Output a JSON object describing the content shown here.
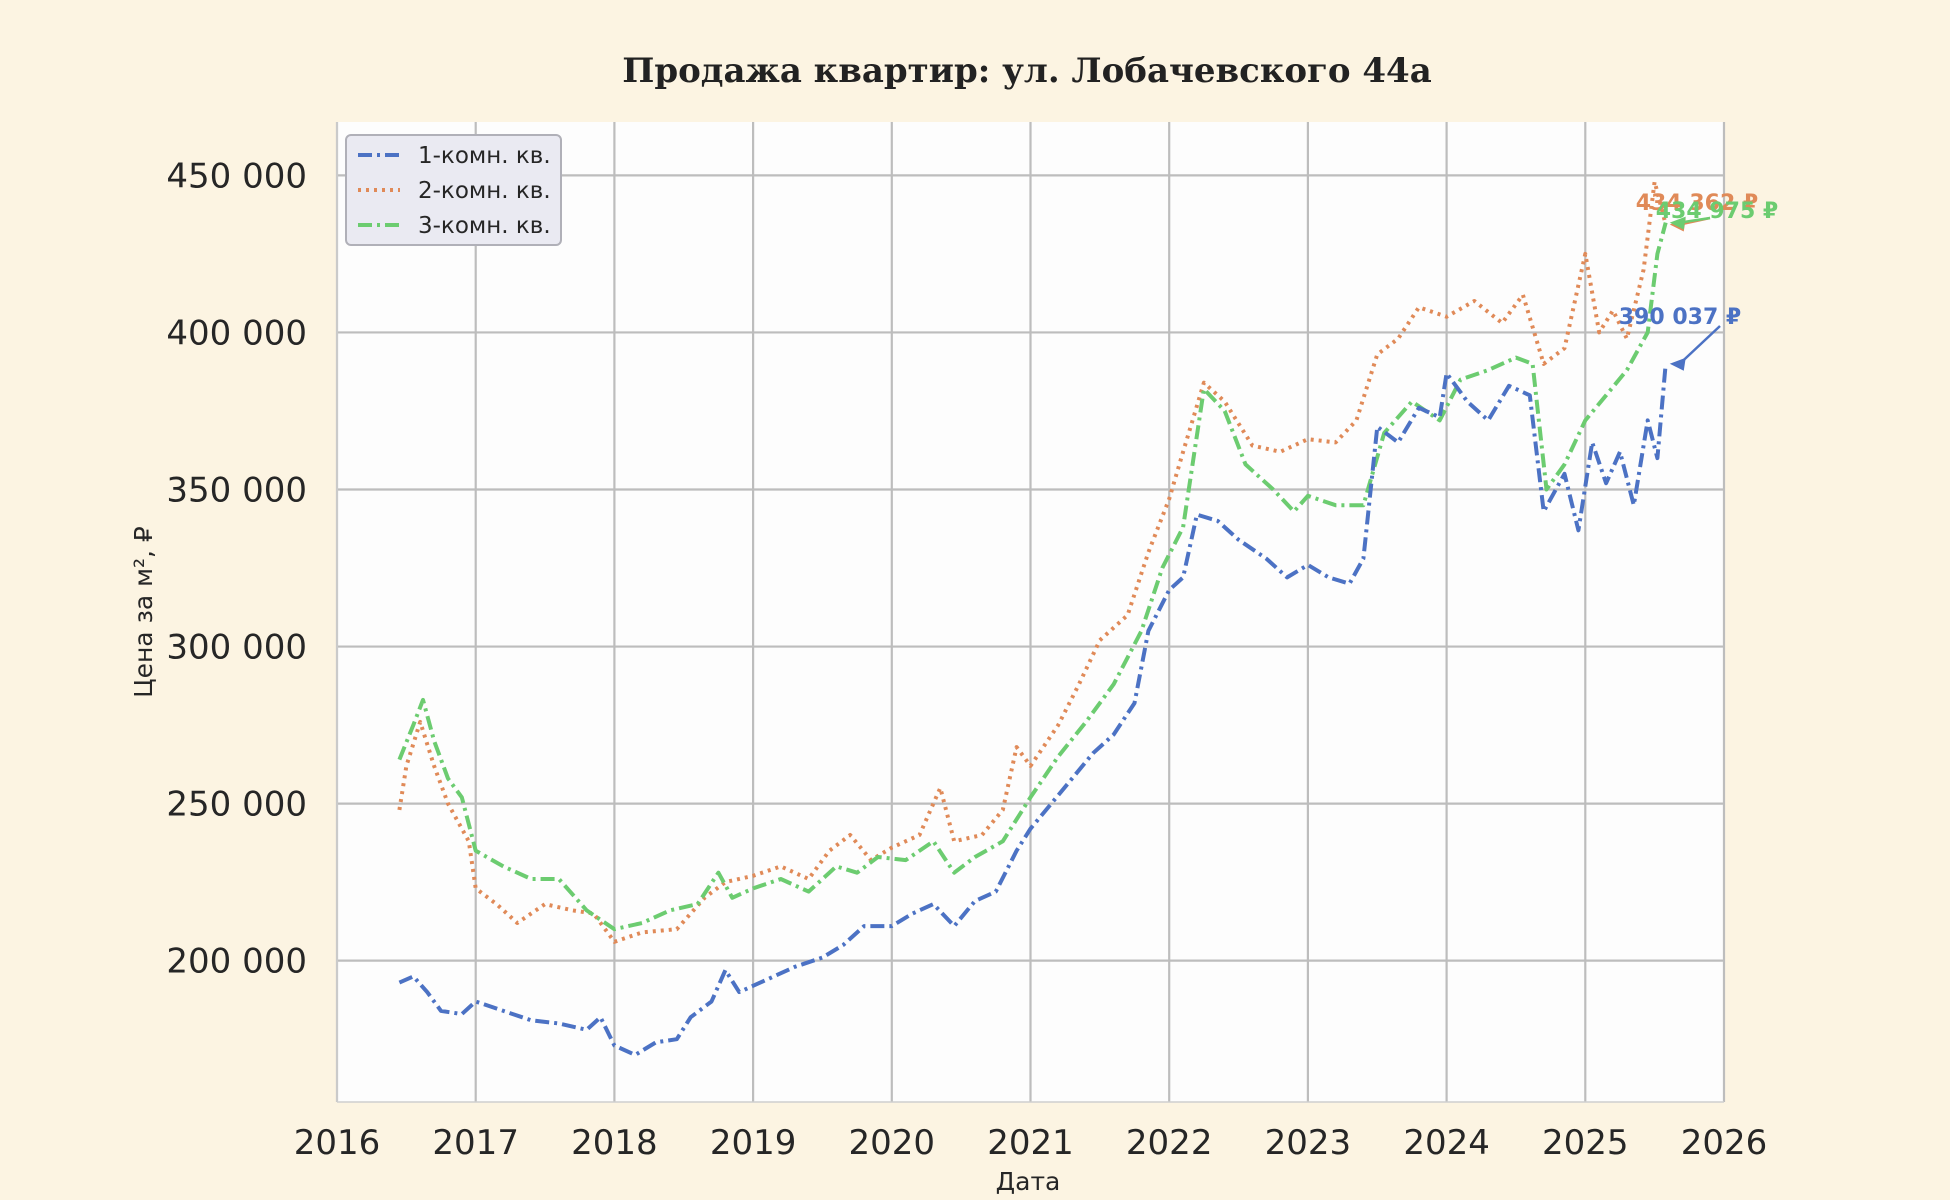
{
  "chart_data": {
    "type": "line",
    "title": "Продажа квартир: ул. Лобачевского 44а",
    "xlabel": "Дата",
    "ylabel": "Цена за м², ₽",
    "xlim": [
      2016,
      2026
    ],
    "ylim": [
      155000,
      467000
    ],
    "x_ticks": [
      "2016",
      "2017",
      "2018",
      "2019",
      "2020",
      "2021",
      "2022",
      "2023",
      "2024",
      "2025",
      "2026"
    ],
    "y_ticks": [
      {
        "value": 200000,
        "label": "200 000"
      },
      {
        "value": 250000,
        "label": "250 000"
      },
      {
        "value": 300000,
        "label": "300 000"
      },
      {
        "value": 350000,
        "label": "350 000"
      },
      {
        "value": 400000,
        "label": "400 000"
      },
      {
        "value": 450000,
        "label": "450 000"
      }
    ],
    "grid": true,
    "legend_position": "top-left",
    "series": [
      {
        "name": "1-комн. кв.",
        "color": "#4c72c4",
        "dash": "dash-dot",
        "points": [
          [
            2016.45,
            193000
          ],
          [
            2016.55,
            195000
          ],
          [
            2016.65,
            190000
          ],
          [
            2016.75,
            184000
          ],
          [
            2016.9,
            183000
          ],
          [
            2017.0,
            187000
          ],
          [
            2017.2,
            184000
          ],
          [
            2017.4,
            181000
          ],
          [
            2017.6,
            180000
          ],
          [
            2017.8,
            178000
          ],
          [
            2017.9,
            182000
          ],
          [
            2018.0,
            173000
          ],
          [
            2018.15,
            170000
          ],
          [
            2018.3,
            174000
          ],
          [
            2018.45,
            175000
          ],
          [
            2018.55,
            182000
          ],
          [
            2018.7,
            187000
          ],
          [
            2018.8,
            197000
          ],
          [
            2018.9,
            190000
          ],
          [
            2019.1,
            194000
          ],
          [
            2019.3,
            198000
          ],
          [
            2019.5,
            201000
          ],
          [
            2019.65,
            205000
          ],
          [
            2019.8,
            211000
          ],
          [
            2020.0,
            211000
          ],
          [
            2020.15,
            215000
          ],
          [
            2020.3,
            218000
          ],
          [
            2020.45,
            211000
          ],
          [
            2020.6,
            219000
          ],
          [
            2020.75,
            222000
          ],
          [
            2020.9,
            235000
          ],
          [
            2021.0,
            242000
          ],
          [
            2021.15,
            250000
          ],
          [
            2021.3,
            258000
          ],
          [
            2021.45,
            266000
          ],
          [
            2021.6,
            272000
          ],
          [
            2021.75,
            282000
          ],
          [
            2021.85,
            305000
          ],
          [
            2022.0,
            318000
          ],
          [
            2022.1,
            322000
          ],
          [
            2022.2,
            342000
          ],
          [
            2022.35,
            340000
          ],
          [
            2022.5,
            334000
          ],
          [
            2022.7,
            328000
          ],
          [
            2022.85,
            322000
          ],
          [
            2023.0,
            326000
          ],
          [
            2023.15,
            322000
          ],
          [
            2023.3,
            320000
          ],
          [
            2023.4,
            328000
          ],
          [
            2023.5,
            370000
          ],
          [
            2023.65,
            365000
          ],
          [
            2023.8,
            376000
          ],
          [
            2023.95,
            373000
          ],
          [
            2024.0,
            387000
          ],
          [
            2024.15,
            378000
          ],
          [
            2024.3,
            372000
          ],
          [
            2024.45,
            383000
          ],
          [
            2024.6,
            380000
          ],
          [
            2024.7,
            343000
          ],
          [
            2024.85,
            355000
          ],
          [
            2024.95,
            337000
          ],
          [
            2025.05,
            365000
          ],
          [
            2025.15,
            352000
          ],
          [
            2025.25,
            362000
          ],
          [
            2025.35,
            345000
          ],
          [
            2025.45,
            372000
          ],
          [
            2025.52,
            360000
          ],
          [
            2025.58,
            390037
          ]
        ]
      },
      {
        "name": "2-комн. кв.",
        "color": "#e08a58",
        "dash": "dotted",
        "points": [
          [
            2016.45,
            248000
          ],
          [
            2016.5,
            262000
          ],
          [
            2016.6,
            276000
          ],
          [
            2016.7,
            262000
          ],
          [
            2016.8,
            250000
          ],
          [
            2016.95,
            238000
          ],
          [
            2017.0,
            223000
          ],
          [
            2017.15,
            218000
          ],
          [
            2017.3,
            212000
          ],
          [
            2017.5,
            218000
          ],
          [
            2017.7,
            216000
          ],
          [
            2017.85,
            215000
          ],
          [
            2018.0,
            206000
          ],
          [
            2018.2,
            209000
          ],
          [
            2018.45,
            210000
          ],
          [
            2018.65,
            220000
          ],
          [
            2018.8,
            225000
          ],
          [
            2019.0,
            227000
          ],
          [
            2019.2,
            230000
          ],
          [
            2019.4,
            226000
          ],
          [
            2019.55,
            235000
          ],
          [
            2019.7,
            240000
          ],
          [
            2019.85,
            232000
          ],
          [
            2020.0,
            236000
          ],
          [
            2020.2,
            240000
          ],
          [
            2020.35,
            255000
          ],
          [
            2020.45,
            238000
          ],
          [
            2020.65,
            240000
          ],
          [
            2020.8,
            248000
          ],
          [
            2020.9,
            268000
          ],
          [
            2021.0,
            262000
          ],
          [
            2021.2,
            275000
          ],
          [
            2021.35,
            288000
          ],
          [
            2021.5,
            302000
          ],
          [
            2021.7,
            310000
          ],
          [
            2021.85,
            330000
          ],
          [
            2022.0,
            347000
          ],
          [
            2022.1,
            362000
          ],
          [
            2022.25,
            384000
          ],
          [
            2022.4,
            378000
          ],
          [
            2022.6,
            364000
          ],
          [
            2022.8,
            362000
          ],
          [
            2023.0,
            366000
          ],
          [
            2023.2,
            365000
          ],
          [
            2023.35,
            372000
          ],
          [
            2023.5,
            393000
          ],
          [
            2023.65,
            398000
          ],
          [
            2023.8,
            408000
          ],
          [
            2024.0,
            405000
          ],
          [
            2024.2,
            410000
          ],
          [
            2024.4,
            403000
          ],
          [
            2024.55,
            412000
          ],
          [
            2024.7,
            390000
          ],
          [
            2024.85,
            395000
          ],
          [
            2025.0,
            425000
          ],
          [
            2025.1,
            400000
          ],
          [
            2025.2,
            407000
          ],
          [
            2025.3,
            398000
          ],
          [
            2025.42,
            420000
          ],
          [
            2025.5,
            448000
          ],
          [
            2025.58,
            434362
          ]
        ]
      },
      {
        "name": "3-комн. кв.",
        "color": "#6ccc70",
        "dash": "dash-dot",
        "points": [
          [
            2016.45,
            264000
          ],
          [
            2016.55,
            275000
          ],
          [
            2016.62,
            283000
          ],
          [
            2016.7,
            270000
          ],
          [
            2016.8,
            258000
          ],
          [
            2016.9,
            252000
          ],
          [
            2017.0,
            235000
          ],
          [
            2017.2,
            230000
          ],
          [
            2017.4,
            226000
          ],
          [
            2017.6,
            226000
          ],
          [
            2017.8,
            216000
          ],
          [
            2018.0,
            210000
          ],
          [
            2018.2,
            212000
          ],
          [
            2018.4,
            216000
          ],
          [
            2018.6,
            218000
          ],
          [
            2018.75,
            228000
          ],
          [
            2018.85,
            220000
          ],
          [
            2019.0,
            223000
          ],
          [
            2019.2,
            226000
          ],
          [
            2019.4,
            222000
          ],
          [
            2019.6,
            230000
          ],
          [
            2019.75,
            228000
          ],
          [
            2019.9,
            233000
          ],
          [
            2020.1,
            232000
          ],
          [
            2020.3,
            238000
          ],
          [
            2020.45,
            228000
          ],
          [
            2020.6,
            233000
          ],
          [
            2020.8,
            238000
          ],
          [
            2021.0,
            252000
          ],
          [
            2021.2,
            265000
          ],
          [
            2021.4,
            276000
          ],
          [
            2021.6,
            288000
          ],
          [
            2021.8,
            305000
          ],
          [
            2021.95,
            325000
          ],
          [
            2022.1,
            338000
          ],
          [
            2022.25,
            382000
          ],
          [
            2022.4,
            375000
          ],
          [
            2022.55,
            358000
          ],
          [
            2022.75,
            350000
          ],
          [
            2022.9,
            343000
          ],
          [
            2023.0,
            348000
          ],
          [
            2023.2,
            345000
          ],
          [
            2023.4,
            345000
          ],
          [
            2023.55,
            368000
          ],
          [
            2023.75,
            378000
          ],
          [
            2023.95,
            372000
          ],
          [
            2024.1,
            385000
          ],
          [
            2024.3,
            388000
          ],
          [
            2024.5,
            392000
          ],
          [
            2024.62,
            390000
          ],
          [
            2024.72,
            350000
          ],
          [
            2024.85,
            358000
          ],
          [
            2025.0,
            372000
          ],
          [
            2025.15,
            380000
          ],
          [
            2025.3,
            388000
          ],
          [
            2025.45,
            400000
          ],
          [
            2025.52,
            425000
          ],
          [
            2025.58,
            434975
          ]
        ]
      }
    ],
    "annotations": [
      {
        "series": "2-комн. кв.",
        "text": "434 362 ₽",
        "color": "#e08a58"
      },
      {
        "series": "3-комн. кв.",
        "text": "434 975 ₽",
        "color": "#6ccc70"
      },
      {
        "series": "1-комн. кв.",
        "text": "390 037 ₽",
        "color": "#4c72c4"
      }
    ]
  }
}
